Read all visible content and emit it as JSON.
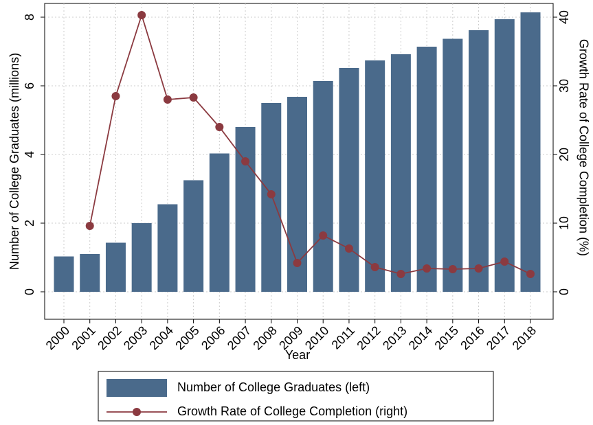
{
  "chart_data": {
    "type": "bar-line",
    "x_label": "Year",
    "y_label": "Number of College Graduates (millions)",
    "y2_label": "Growth Rate of College Completion (%)",
    "categories": [
      "2000",
      "2001",
      "2002",
      "2003",
      "2004",
      "2005",
      "2006",
      "2007",
      "2008",
      "2009",
      "2010",
      "2011",
      "2012",
      "2013",
      "2014",
      "2015",
      "2016",
      "2017",
      "2018"
    ],
    "series": [
      {
        "name": "Number of College Graduates (left)",
        "type": "bar",
        "color": "#4a6a8b",
        "values": [
          1.03,
          1.1,
          1.43,
          2.0,
          2.55,
          3.25,
          4.03,
          4.8,
          5.5,
          5.68,
          6.14,
          6.52,
          6.74,
          6.92,
          7.14,
          7.37,
          7.62,
          7.94,
          8.14
        ]
      },
      {
        "name": "Growth Rate of College Completion (right)",
        "type": "line",
        "axis": "y2",
        "color": "#8b3a40",
        "values": [
          null,
          9.6,
          28.5,
          40.3,
          28.0,
          28.3,
          24.0,
          19.0,
          14.2,
          4.2,
          8.2,
          6.3,
          3.6,
          2.6,
          3.4,
          3.3,
          3.4,
          4.4,
          2.6
        ]
      }
    ],
    "ylim": [
      -0.8,
      8.4
    ],
    "yticks": [
      0,
      2,
      4,
      6,
      8
    ],
    "y2lim": [
      -4,
      42
    ],
    "y2ticks": [
      0,
      10,
      20,
      30,
      40
    ],
    "grid": true,
    "legend": "bottom"
  }
}
